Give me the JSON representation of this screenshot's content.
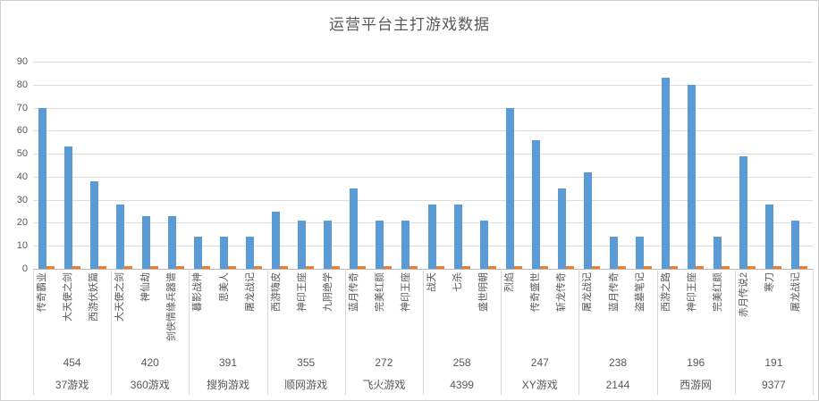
{
  "title": "运营平台主打游戏数据",
  "colors": {
    "primary_bar": "#5B9BD5",
    "secondary_bar": "#ED7D31",
    "gridline": "#DCDCDC",
    "axis_line": "#B9B9B9",
    "text": "#595959"
  },
  "y_axis": {
    "min": 0,
    "max": 90,
    "step": 10,
    "ticks": [
      "0",
      "10",
      "20",
      "30",
      "40",
      "50",
      "60",
      "70",
      "80",
      "90"
    ]
  },
  "chart_data": {
    "type": "bar",
    "title": "运营平台主打游戏数据",
    "xlabel": "",
    "ylabel": "",
    "ylim": [
      0,
      90
    ],
    "grid": true,
    "legend": "none",
    "category_label_rotation": -90,
    "groups": [
      {
        "platform": "37游戏",
        "total": "454",
        "games": [
          "传奇霸业",
          "大天使之剑",
          "西游伏妖篇"
        ],
        "values": [
          70,
          53,
          38
        ],
        "secondary_values": [
          1,
          1,
          1
        ]
      },
      {
        "platform": "360游戏",
        "total": "420",
        "games": [
          "大天使之剑",
          "神仙劫",
          "剑侠情缘兵器谱"
        ],
        "values": [
          28,
          23,
          23
        ],
        "secondary_values": [
          1,
          1,
          1
        ]
      },
      {
        "platform": "搜狗游戏",
        "total": "391",
        "games": [
          "暮影战神",
          "思美人",
          "屠龙战记"
        ],
        "values": [
          14,
          14,
          14
        ],
        "secondary_values": [
          1,
          1,
          1
        ]
      },
      {
        "platform": "顺网游戏",
        "total": "355",
        "games": [
          "西游嗨皮",
          "神印王座",
          "九阴绝学"
        ],
        "values": [
          25,
          21,
          21
        ],
        "secondary_values": [
          1,
          1,
          1
        ]
      },
      {
        "platform": "飞火游戏",
        "total": "272",
        "games": [
          "蓝月传奇",
          "完美红颜",
          "神印王座"
        ],
        "values": [
          35,
          21,
          21
        ],
        "secondary_values": [
          1,
          1,
          1
        ]
      },
      {
        "platform": "4399",
        "total": "258",
        "games": [
          "战天",
          "七杀",
          "盛世明朝"
        ],
        "values": [
          28,
          28,
          21
        ],
        "secondary_values": [
          1,
          1,
          1
        ]
      },
      {
        "platform": "XY游戏",
        "total": "247",
        "games": [
          "烈焰",
          "传奇盛世",
          "斩龙传奇"
        ],
        "values": [
          70,
          56,
          35
        ],
        "secondary_values": [
          1,
          1,
          1
        ]
      },
      {
        "platform": "2144",
        "total": "238",
        "games": [
          "屠龙战记",
          "蓝月传奇",
          "盗墓笔记"
        ],
        "values": [
          42,
          14,
          14
        ],
        "secondary_values": [
          1,
          1,
          1
        ]
      },
      {
        "platform": "西游网",
        "total": "196",
        "games": [
          "西游之路",
          "神印王座",
          "完美红颜"
        ],
        "values": [
          83,
          80,
          14
        ],
        "secondary_values": [
          1,
          1,
          1
        ]
      },
      {
        "platform": "9377",
        "total": "191",
        "games": [
          "赤月传说2",
          "寒刀",
          "屠龙战记"
        ],
        "values": [
          49,
          28,
          21
        ],
        "secondary_values": [
          1,
          1,
          1
        ]
      }
    ]
  }
}
